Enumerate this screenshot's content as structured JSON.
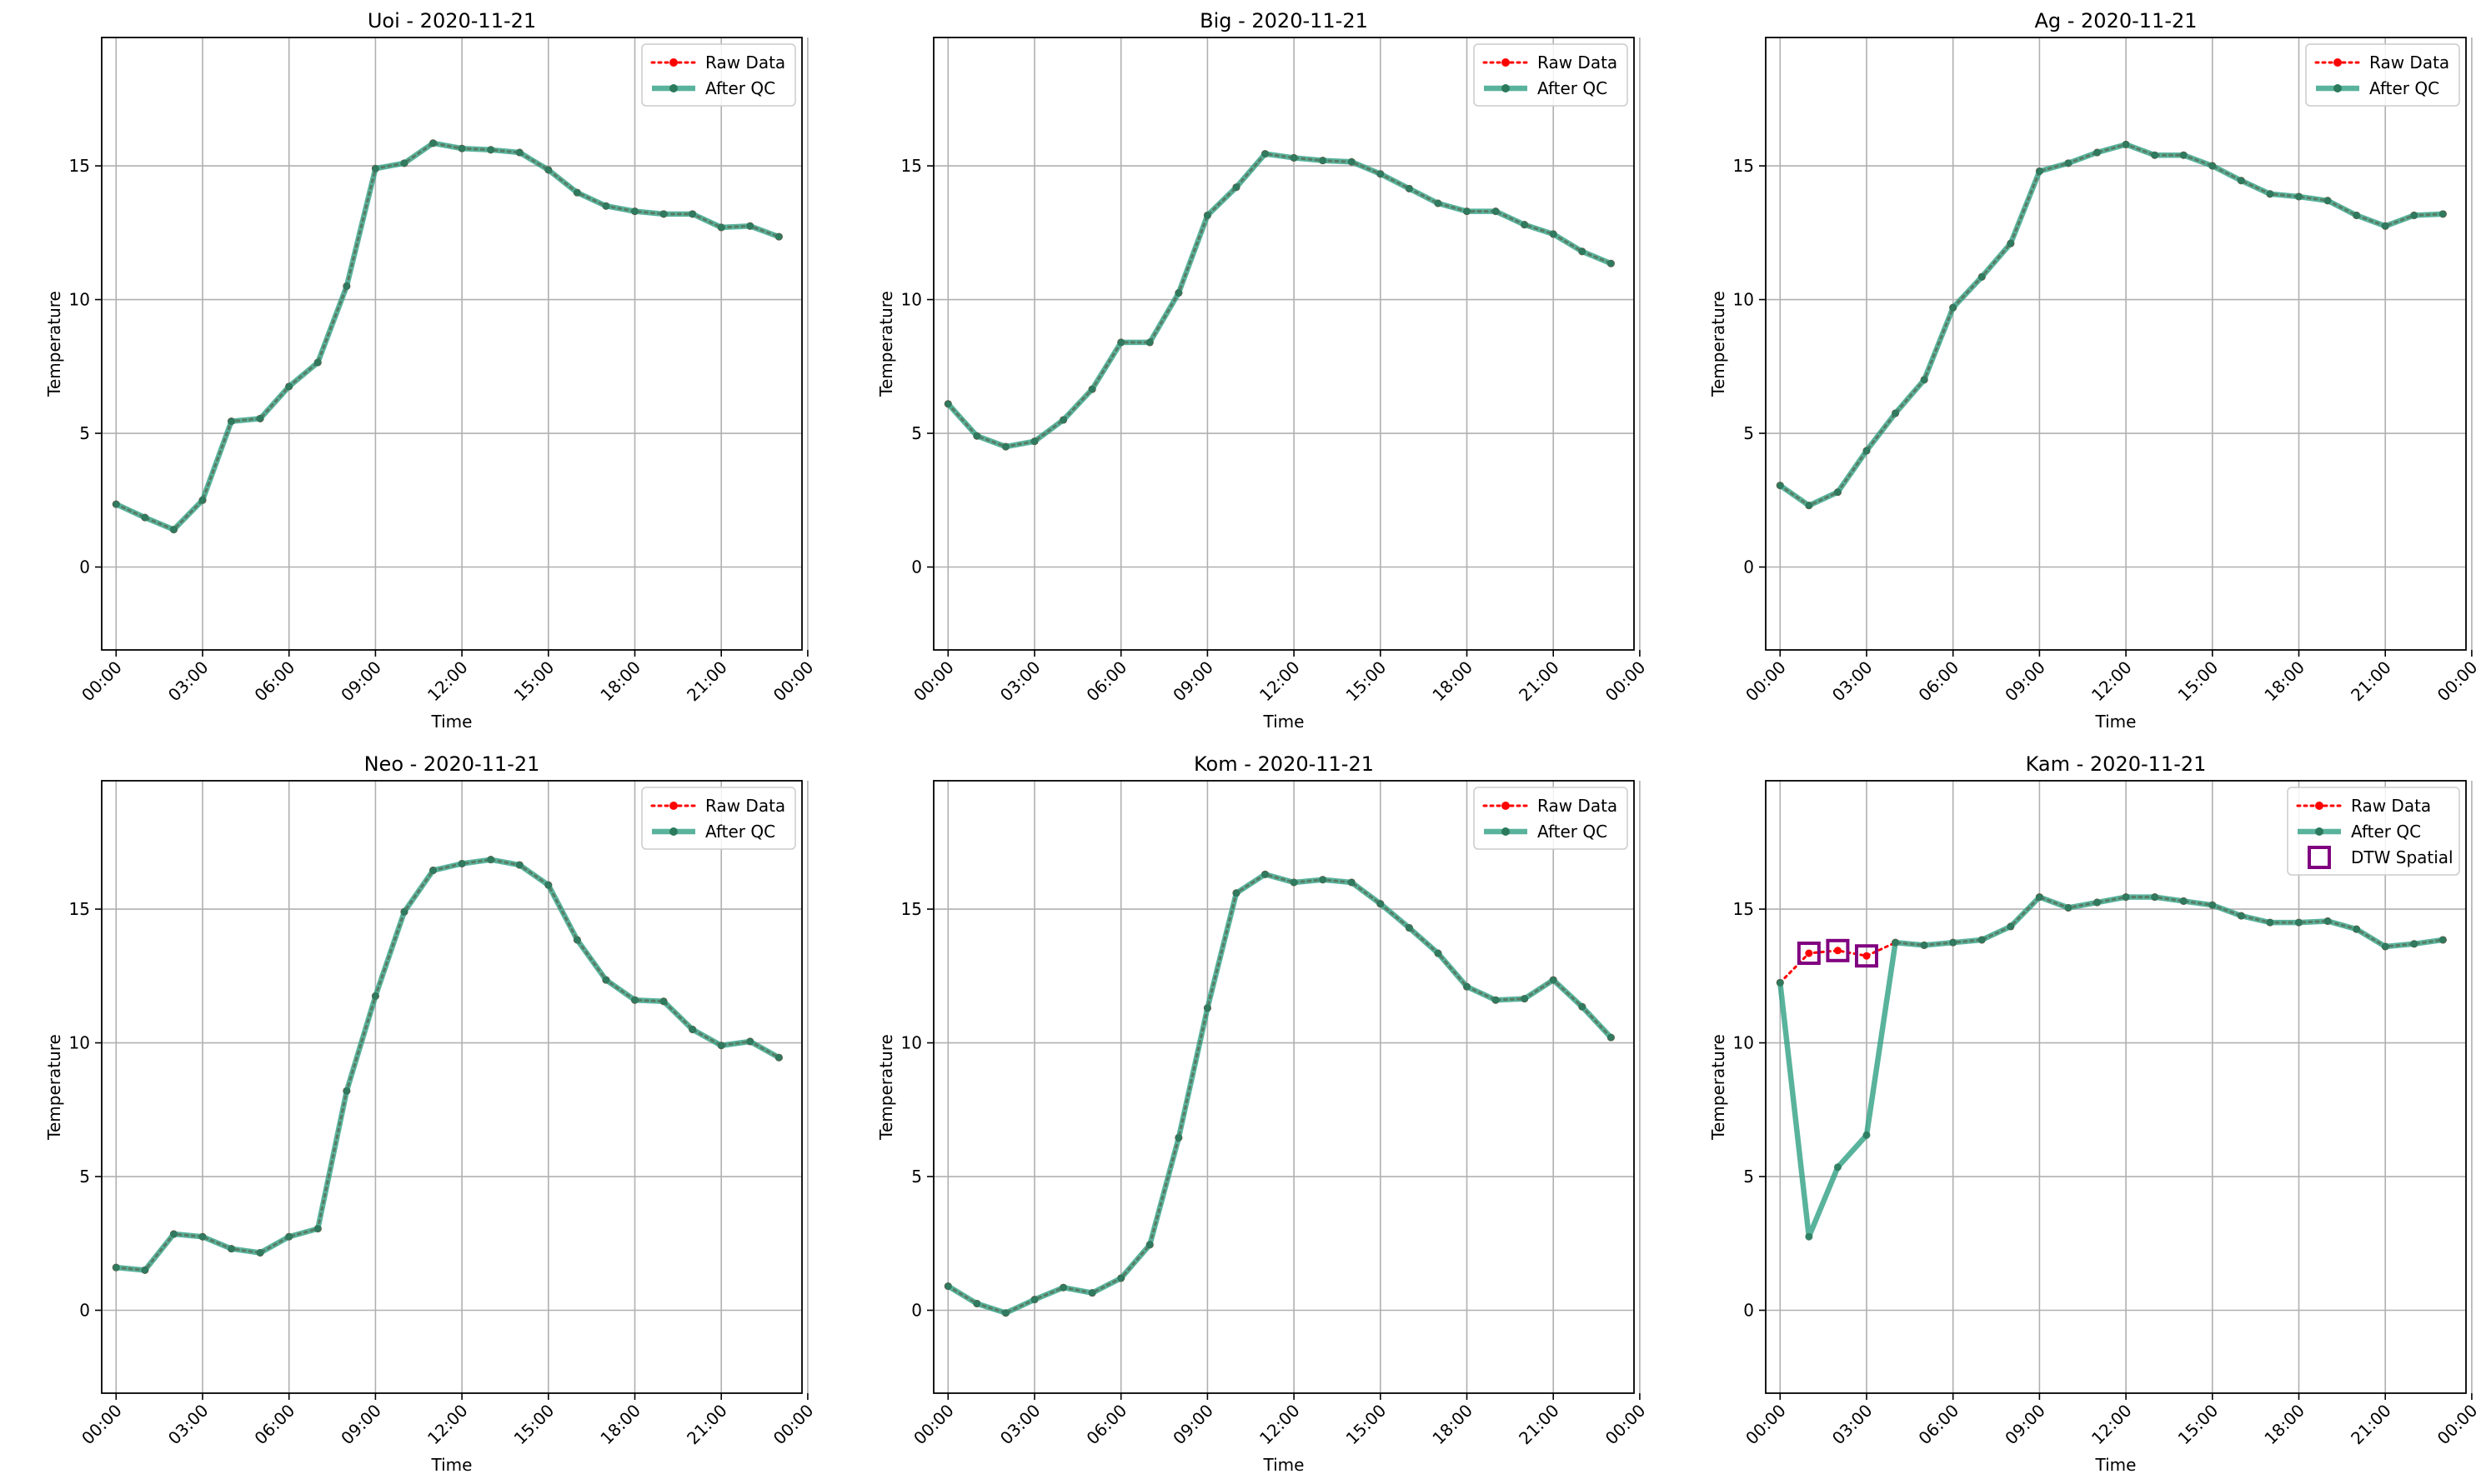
{
  "figure": {
    "charts": [
      {
        "title": "Uoi - 2020-11-21",
        "xlabel": "Time",
        "ylabel": "Temperature"
      },
      {
        "title": "Big - 2020-11-21",
        "xlabel": "Time",
        "ylabel": "Temperature"
      },
      {
        "title": "Ag - 2020-11-21",
        "xlabel": "Time",
        "ylabel": "Temperature"
      },
      {
        "title": "Neo - 2020-11-21",
        "xlabel": "Time",
        "ylabel": "Temperature"
      },
      {
        "title": "Kom - 2020-11-21",
        "xlabel": "Time",
        "ylabel": "Temperature"
      },
      {
        "title": "Kam - 2020-11-21",
        "xlabel": "Time",
        "ylabel": "Temperature"
      }
    ]
  },
  "chart_data": [
    {
      "type": "line",
      "title": "Uoi - 2020-11-21",
      "xlabel": "Time",
      "ylabel": "Temperature",
      "x": [
        "00:00",
        "01:00",
        "02:00",
        "03:00",
        "04:00",
        "05:00",
        "06:00",
        "07:00",
        "08:00",
        "09:00",
        "10:00",
        "11:00",
        "12:00",
        "13:00",
        "14:00",
        "15:00",
        "16:00",
        "17:00",
        "18:00",
        "19:00",
        "20:00",
        "21:00",
        "22:00",
        "23:00"
      ],
      "x_ticks": [
        "00:00",
        "03:00",
        "06:00",
        "09:00",
        "12:00",
        "15:00",
        "18:00",
        "21:00",
        "00:00"
      ],
      "y_ticks": [
        0,
        5,
        10,
        15
      ],
      "ylim": [
        -3.1,
        19.8
      ],
      "grid": true,
      "legend": "top-right",
      "series": [
        {
          "name": "Raw Data",
          "color": "#ff0000",
          "style": "dotted",
          "values": [
            2.35,
            1.85,
            1.4,
            2.5,
            5.45,
            5.55,
            6.75,
            7.65,
            10.5,
            14.9,
            15.1,
            15.85,
            15.65,
            15.6,
            15.5,
            14.85,
            14.0,
            13.5,
            13.3,
            13.2,
            13.2,
            12.7,
            12.75,
            12.35
          ]
        },
        {
          "name": "After QC",
          "color": "#2a9d80",
          "style": "solid",
          "values": [
            2.35,
            1.85,
            1.4,
            2.5,
            5.45,
            5.55,
            6.75,
            7.65,
            10.5,
            14.9,
            15.1,
            15.85,
            15.65,
            15.6,
            15.5,
            14.85,
            14.0,
            13.5,
            13.3,
            13.2,
            13.2,
            12.7,
            12.75,
            12.35
          ]
        }
      ]
    },
    {
      "type": "line",
      "title": "Big - 2020-11-21",
      "xlabel": "Time",
      "ylabel": "Temperature",
      "x": [
        "00:00",
        "01:00",
        "02:00",
        "03:00",
        "04:00",
        "05:00",
        "06:00",
        "07:00",
        "08:00",
        "09:00",
        "10:00",
        "11:00",
        "12:00",
        "13:00",
        "14:00",
        "15:00",
        "16:00",
        "17:00",
        "18:00",
        "19:00",
        "20:00",
        "21:00",
        "22:00",
        "23:00"
      ],
      "x_ticks": [
        "00:00",
        "03:00",
        "06:00",
        "09:00",
        "12:00",
        "15:00",
        "18:00",
        "21:00",
        "00:00"
      ],
      "y_ticks": [
        0,
        5,
        10,
        15
      ],
      "ylim": [
        -3.1,
        19.8
      ],
      "grid": true,
      "legend": "top-right",
      "series": [
        {
          "name": "Raw Data",
          "color": "#ff0000",
          "style": "dotted",
          "values": [
            6.1,
            4.9,
            4.5,
            4.7,
            5.5,
            6.65,
            8.4,
            8.4,
            10.25,
            13.15,
            14.2,
            15.45,
            15.3,
            15.2,
            15.15,
            14.7,
            14.15,
            13.6,
            13.3,
            13.3,
            12.8,
            12.45,
            11.8,
            11.35
          ]
        },
        {
          "name": "After QC",
          "color": "#2a9d80",
          "style": "solid",
          "values": [
            6.1,
            4.9,
            4.5,
            4.7,
            5.5,
            6.65,
            8.4,
            8.4,
            10.25,
            13.15,
            14.2,
            15.45,
            15.3,
            15.2,
            15.15,
            14.7,
            14.15,
            13.6,
            13.3,
            13.3,
            12.8,
            12.45,
            11.8,
            11.35
          ]
        }
      ]
    },
    {
      "type": "line",
      "title": "Ag - 2020-11-21",
      "xlabel": "Time",
      "ylabel": "Temperature",
      "x": [
        "00:00",
        "01:00",
        "02:00",
        "03:00",
        "04:00",
        "05:00",
        "06:00",
        "07:00",
        "08:00",
        "09:00",
        "10:00",
        "11:00",
        "12:00",
        "13:00",
        "14:00",
        "15:00",
        "16:00",
        "17:00",
        "18:00",
        "19:00",
        "20:00",
        "21:00",
        "22:00",
        "23:00"
      ],
      "x_ticks": [
        "00:00",
        "03:00",
        "06:00",
        "09:00",
        "12:00",
        "15:00",
        "18:00",
        "21:00",
        "00:00"
      ],
      "y_ticks": [
        0,
        5,
        10,
        15
      ],
      "ylim": [
        -3.1,
        19.8
      ],
      "grid": true,
      "legend": "top-right",
      "series": [
        {
          "name": "Raw Data",
          "color": "#ff0000",
          "style": "dotted",
          "values": [
            3.05,
            2.3,
            2.8,
            4.35,
            5.75,
            7.0,
            9.7,
            10.85,
            12.1,
            14.8,
            15.1,
            15.5,
            15.8,
            15.4,
            15.4,
            15.0,
            14.45,
            13.95,
            13.85,
            13.7,
            13.15,
            12.75,
            13.15,
            13.2
          ]
        },
        {
          "name": "After QC",
          "color": "#2a9d80",
          "style": "solid",
          "values": [
            3.05,
            2.3,
            2.8,
            4.35,
            5.75,
            7.0,
            9.7,
            10.85,
            12.1,
            14.8,
            15.1,
            15.5,
            15.8,
            15.4,
            15.4,
            15.0,
            14.45,
            13.95,
            13.85,
            13.7,
            13.15,
            12.75,
            13.15,
            13.2
          ]
        }
      ]
    },
    {
      "type": "line",
      "title": "Neo - 2020-11-21",
      "xlabel": "Time",
      "ylabel": "Temperature",
      "x": [
        "00:00",
        "01:00",
        "02:00",
        "03:00",
        "04:00",
        "05:00",
        "06:00",
        "07:00",
        "08:00",
        "09:00",
        "10:00",
        "11:00",
        "12:00",
        "13:00",
        "14:00",
        "15:00",
        "16:00",
        "17:00",
        "18:00",
        "19:00",
        "20:00",
        "21:00",
        "22:00",
        "23:00"
      ],
      "x_ticks": [
        "00:00",
        "03:00",
        "06:00",
        "09:00",
        "12:00",
        "15:00",
        "18:00",
        "21:00",
        "00:00"
      ],
      "y_ticks": [
        0,
        5,
        10,
        15
      ],
      "ylim": [
        -3.1,
        19.8
      ],
      "grid": true,
      "legend": "top-right",
      "series": [
        {
          "name": "Raw Data",
          "color": "#ff0000",
          "style": "dotted",
          "values": [
            1.6,
            1.5,
            2.85,
            2.75,
            2.3,
            2.15,
            2.75,
            3.05,
            8.2,
            11.75,
            14.9,
            16.45,
            16.7,
            16.85,
            16.65,
            15.9,
            13.85,
            12.35,
            11.6,
            11.55,
            10.5,
            9.9,
            10.05,
            9.45
          ]
        },
        {
          "name": "After QC",
          "color": "#2a9d80",
          "style": "solid",
          "values": [
            1.6,
            1.5,
            2.85,
            2.75,
            2.3,
            2.15,
            2.75,
            3.05,
            8.2,
            11.75,
            14.9,
            16.45,
            16.7,
            16.85,
            16.65,
            15.9,
            13.85,
            12.35,
            11.6,
            11.55,
            10.5,
            9.9,
            10.05,
            9.45
          ]
        }
      ]
    },
    {
      "type": "line",
      "title": "Kom - 2020-11-21",
      "xlabel": "Time",
      "ylabel": "Temperature",
      "x": [
        "00:00",
        "01:00",
        "02:00",
        "03:00",
        "04:00",
        "05:00",
        "06:00",
        "07:00",
        "08:00",
        "09:00",
        "10:00",
        "11:00",
        "12:00",
        "13:00",
        "14:00",
        "15:00",
        "16:00",
        "17:00",
        "18:00",
        "19:00",
        "20:00",
        "21:00",
        "22:00",
        "23:00"
      ],
      "x_ticks": [
        "00:00",
        "03:00",
        "06:00",
        "09:00",
        "12:00",
        "15:00",
        "18:00",
        "21:00",
        "00:00"
      ],
      "y_ticks": [
        0,
        5,
        10,
        15
      ],
      "ylim": [
        -3.1,
        19.8
      ],
      "grid": true,
      "legend": "top-right",
      "series": [
        {
          "name": "Raw Data",
          "color": "#ff0000",
          "style": "dotted",
          "values": [
            0.9,
            0.25,
            -0.1,
            0.4,
            0.85,
            0.65,
            1.2,
            2.45,
            6.45,
            11.3,
            15.6,
            16.3,
            16.0,
            16.1,
            16.0,
            15.2,
            14.3,
            13.35,
            12.1,
            11.6,
            11.65,
            12.35,
            11.35,
            10.2
          ]
        },
        {
          "name": "After QC",
          "color": "#2a9d80",
          "style": "solid",
          "values": [
            0.9,
            0.25,
            -0.1,
            0.4,
            0.85,
            0.65,
            1.2,
            2.45,
            6.45,
            11.3,
            15.6,
            16.3,
            16.0,
            16.1,
            16.0,
            15.2,
            14.3,
            13.35,
            12.1,
            11.6,
            11.65,
            12.35,
            11.35,
            10.2
          ]
        }
      ]
    },
    {
      "type": "line",
      "title": "Kam - 2020-11-21",
      "xlabel": "Time",
      "ylabel": "Temperature",
      "x": [
        "00:00",
        "01:00",
        "02:00",
        "03:00",
        "04:00",
        "05:00",
        "06:00",
        "07:00",
        "08:00",
        "09:00",
        "10:00",
        "11:00",
        "12:00",
        "13:00",
        "14:00",
        "15:00",
        "16:00",
        "17:00",
        "18:00",
        "19:00",
        "20:00",
        "21:00",
        "22:00",
        "23:00"
      ],
      "x_ticks": [
        "00:00",
        "03:00",
        "06:00",
        "09:00",
        "12:00",
        "15:00",
        "18:00",
        "21:00",
        "00:00"
      ],
      "y_ticks": [
        0,
        5,
        10,
        15
      ],
      "ylim": [
        -3.1,
        19.8
      ],
      "grid": true,
      "legend": "top-right",
      "series": [
        {
          "name": "Raw Data",
          "color": "#ff0000",
          "style": "dotted",
          "values": [
            12.25,
            13.35,
            13.45,
            13.25,
            13.75,
            13.65,
            13.75,
            13.85,
            14.35,
            15.45,
            15.05,
            15.25,
            15.45,
            15.45,
            15.3,
            15.15,
            14.75,
            14.5,
            14.5,
            14.55,
            14.25,
            13.6,
            13.7,
            13.85
          ]
        },
        {
          "name": "After QC",
          "color": "#2a9d80",
          "style": "solid",
          "values": [
            12.25,
            2.75,
            5.35,
            6.55,
            13.75,
            13.65,
            13.75,
            13.85,
            14.35,
            15.45,
            15.05,
            15.25,
            15.45,
            15.45,
            15.3,
            15.15,
            14.75,
            14.5,
            14.5,
            14.55,
            14.25,
            13.6,
            13.7,
            13.85
          ]
        },
        {
          "name": "DTW Spatial",
          "color": "#800080",
          "style": "square-marker",
          "points": [
            {
              "x": "01:00",
              "y": 13.35
            },
            {
              "x": "02:00",
              "y": 13.45
            },
            {
              "x": "03:00",
              "y": 13.25
            }
          ]
        }
      ]
    }
  ]
}
